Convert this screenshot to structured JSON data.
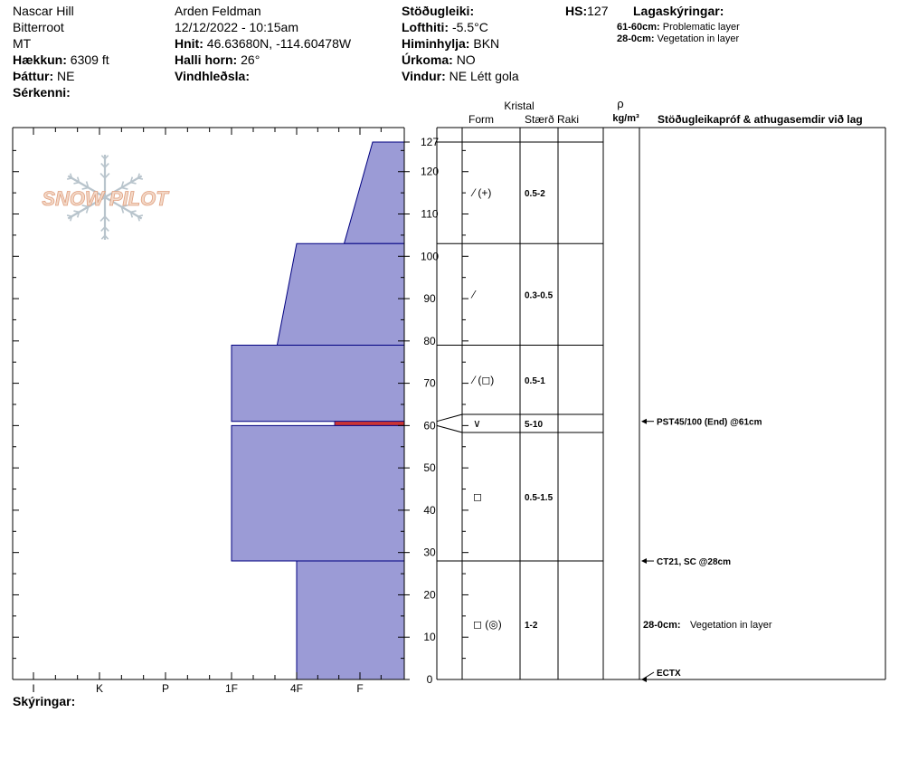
{
  "header": {
    "location": "Nascar Hill",
    "range": "Bitterroot",
    "state": "MT",
    "elevation_label": "Hækkun:",
    "elevation": "6309 ft",
    "aspect_label": "Þáttur:",
    "aspect": "NE",
    "features_label": "Sérkenni:",
    "observer": "Arden Feldman",
    "datetime": "12/12/2022 - 10:15am",
    "coords_label": "Hnit:",
    "coords": "46.63680N, -114.60478W",
    "slope_label": "Halli horn:",
    "slope": "26°",
    "wind_load_label": "Vindhleðsla:",
    "stability_label": "Stöðugleiki:",
    "airtemp_label": "Lofthiti:",
    "airtemp": "-5.5°C",
    "sky_label": "Himinhylja:",
    "sky": "BKN",
    "precip_label": "Úrkoma:",
    "precip": "NO",
    "wind_label": "Vindur:",
    "wind": "NE Létt gola",
    "hs_label": "HS:",
    "hs": "127",
    "legend_title": "Lagaskýringar:",
    "legend": [
      {
        "range": "61-60cm:",
        "text": "Problematic layer"
      },
      {
        "range": "28-0cm:",
        "text": "Vegetation in layer"
      }
    ]
  },
  "logo_text": "SNOW PILOT",
  "footer": {
    "remarks_label": "Skýringar:"
  },
  "columns": {
    "crystal": "Kristal",
    "form": "Form",
    "size": "Stærð",
    "moisture": "Raki",
    "density_symbol": "ρ",
    "density_unit": "kg/m³",
    "tests": "Stöðugleikapróf & athugasemdir við lag"
  },
  "colors": {
    "layer_fill": "#9b9bd6",
    "layer_stroke": "#000080",
    "problem_band": "#cc3333"
  },
  "chart_data": {
    "type": "snow_profile",
    "x_hardness_labels": [
      "I",
      "K",
      "P",
      "1F",
      "4F",
      "F"
    ],
    "y_ticks": [
      0,
      10,
      20,
      30,
      40,
      50,
      60,
      70,
      80,
      90,
      100,
      110,
      120,
      127
    ],
    "ylim": [
      0,
      127
    ],
    "layers": [
      {
        "top": 127,
        "bottom": 103,
        "hard_top": 5.2,
        "hard_bottom": 4.75,
        "form": "⁄ (+)",
        "size": "0.5-2"
      },
      {
        "top": 103,
        "bottom": 79,
        "hard_top": 4.0,
        "hard_bottom": 3.7,
        "form": "⁄",
        "size": "0.3-0.5"
      },
      {
        "top": 79,
        "bottom": 61,
        "hard_top": 3.0,
        "hard_bottom": 3.0,
        "form": "⁄ (◻)",
        "size": "0.5-1"
      },
      {
        "top": 61,
        "bottom": 60,
        "hard_top": 4.6,
        "hard_bottom": 4.6,
        "form": "∨",
        "size": "5-10",
        "problem": true
      },
      {
        "top": 60,
        "bottom": 28,
        "hard_top": 3.0,
        "hard_bottom": 3.0,
        "form": "◻",
        "size": "0.5-1.5"
      },
      {
        "top": 28,
        "bottom": 0,
        "hard_top": 4.0,
        "hard_bottom": 4.0,
        "form": "◻ (◎)",
        "size": "1-2"
      }
    ],
    "tests": [
      {
        "depth": 61,
        "text": "PST45/100 (End) @61cm"
      },
      {
        "depth": 28,
        "text": "CT21, SC @28cm"
      },
      {
        "depth": 0,
        "text": "ECTX"
      }
    ],
    "notes": [
      {
        "depth": 13,
        "label": "28-0cm:",
        "text": "Vegetation in layer"
      }
    ]
  }
}
